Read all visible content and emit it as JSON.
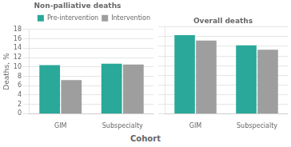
{
  "chart_data": [
    {
      "type": "bar",
      "title": "Non-palliative deaths",
      "categories": [
        "GIM",
        "Subspecialty"
      ],
      "series": [
        {
          "name": "Pre-intervention",
          "color": "#2aA89A",
          "values": [
            10.4,
            10.7
          ]
        },
        {
          "name": "Intervention",
          "color": "#9E9E9E",
          "values": [
            7.2,
            10.5
          ]
        }
      ],
      "ylabel": "Deaths, %",
      "ylim": [
        0,
        18
      ],
      "yticks": [
        0,
        2,
        4,
        6,
        8,
        10,
        12,
        14,
        16,
        18
      ],
      "grid": true,
      "legend": "upper right"
    },
    {
      "type": "bar",
      "title": "Overall deaths",
      "categories": [
        "GIM",
        "Subspecialty"
      ],
      "series": [
        {
          "name": "Pre-intervention",
          "color": "#2aA89A",
          "values": [
            16.3,
            14.2
          ]
        },
        {
          "name": "Intervention",
          "color": "#9E9E9E",
          "values": [
            15.2,
            13.3
          ]
        }
      ],
      "xlabel": "Cohort",
      "ylim": [
        0,
        18
      ],
      "yticks": [
        0,
        2,
        4,
        6,
        8,
        10,
        12,
        14,
        16,
        18
      ],
      "grid": true,
      "tick_labels": "x"
    }
  ]
}
